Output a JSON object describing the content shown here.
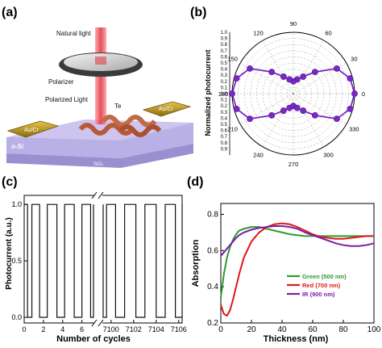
{
  "panels": {
    "a": {
      "tag": "(a)",
      "labels": {
        "natural_light": "Natural light",
        "polarizer": "Polarizer",
        "polarized_light": "Polarized Light",
        "te": "Te",
        "electrode_left": "Au/Cr",
        "electrode_right": "Au/Cr",
        "substrate": "n-Si",
        "oxide": "SiO₂"
      },
      "colors": {
        "laser": "#e0303a",
        "gold": "#c9a227",
        "substrate": "#9b8fd0",
        "oxide": "#b9b0e6"
      }
    },
    "b": {
      "tag": "(b)"
    },
    "c": {
      "tag": "(c)"
    },
    "d": {
      "tag": "(d)"
    }
  },
  "chart_data": [
    {
      "panel": "b",
      "type": "scatter",
      "polar": true,
      "ylabel": "Normalized photocurrent",
      "radial_range": [
        0,
        1.0
      ],
      "radial_ticks_right": [
        "0.0",
        "0.1",
        "0.2",
        "0.3",
        "0.4",
        "0.5",
        "0.6",
        "0.7",
        "0.8",
        "0.9",
        "1.0"
      ],
      "radial_ticks_left": [
        "1.0",
        "0.9",
        "0.8",
        "0.7",
        "0.6",
        "0.5",
        "0.4",
        "0.3",
        "0.2",
        "0.1"
      ],
      "angle_ticks": [
        0,
        30,
        60,
        90,
        120,
        150,
        180,
        210,
        240,
        270,
        300,
        330
      ],
      "angles": [
        0,
        15,
        30,
        45,
        60,
        75,
        90,
        105,
        120,
        135,
        150,
        165,
        180,
        195,
        210,
        225,
        240,
        255,
        270,
        285,
        300,
        315,
        330,
        345
      ],
      "values": [
        1.0,
        0.96,
        0.82,
        0.5,
        0.32,
        0.24,
        0.2,
        0.24,
        0.32,
        0.5,
        0.82,
        0.96,
        1.0,
        0.96,
        0.82,
        0.5,
        0.32,
        0.24,
        0.2,
        0.24,
        0.32,
        0.5,
        0.82,
        0.96
      ],
      "color": "#7a28c8",
      "grid": true
    },
    {
      "panel": "c",
      "type": "line",
      "xlabel": "Number of cycles",
      "ylabel": "Photocurrent (a.u.)",
      "ylim": [
        -0.05,
        1.08
      ],
      "yticks": [
        "0.0",
        "0.5",
        "1.0"
      ],
      "xticks_left": [
        "0",
        "2",
        "4",
        "6"
      ],
      "xticks_right": [
        "7100",
        "7102",
        "7104",
        "7106"
      ],
      "left_range": [
        0,
        7.2
      ],
      "right_range": [
        7099.3,
        7106.3
      ],
      "high": 1.0,
      "low": 0.0,
      "cycles_left": [
        [
          0.35,
          0.8
        ],
        [
          1.6,
          2.4
        ],
        [
          3.4,
          4.2
        ],
        [
          5.2,
          6.0
        ],
        [
          6.9,
          7.2
        ]
      ],
      "cycles_right": [
        [
          7099.3,
          7099.6
        ],
        [
          7100.4,
          7101.2
        ],
        [
          7102.2,
          7103.0
        ],
        [
          7104.0,
          7104.8
        ],
        [
          7105.7,
          7106.3
        ]
      ],
      "color": "#111111"
    },
    {
      "panel": "d",
      "type": "line",
      "xlabel": "Thickness (nm)",
      "ylabel": "Absorption",
      "xlim": [
        0,
        100
      ],
      "ylim": [
        0.2,
        0.86
      ],
      "xticks": [
        "0",
        "20",
        "40",
        "60",
        "80",
        "100"
      ],
      "yticks": [
        "0.2",
        "0.4",
        "0.6",
        "0.8"
      ],
      "x": [
        0,
        2,
        4,
        6,
        8,
        10,
        12,
        15,
        20,
        25,
        30,
        35,
        40,
        45,
        50,
        55,
        60,
        65,
        70,
        75,
        80,
        85,
        90,
        95,
        100
      ],
      "series": [
        {
          "name": "Green (500 nm)",
          "color": "#2e9a2e",
          "values": [
            0.34,
            0.47,
            0.56,
            0.62,
            0.66,
            0.69,
            0.71,
            0.72,
            0.73,
            0.73,
            0.72,
            0.71,
            0.7,
            0.69,
            0.685,
            0.68,
            0.68,
            0.68,
            0.68,
            0.68,
            0.68,
            0.68,
            0.68,
            0.68,
            0.68
          ]
        },
        {
          "name": "Red (700 nm)",
          "color": "#e01818",
          "values": [
            0.3,
            0.25,
            0.24,
            0.27,
            0.33,
            0.4,
            0.47,
            0.56,
            0.65,
            0.7,
            0.73,
            0.745,
            0.75,
            0.745,
            0.73,
            0.71,
            0.69,
            0.675,
            0.67,
            0.665,
            0.665,
            0.67,
            0.675,
            0.68,
            0.68
          ]
        },
        {
          "name": "IR (900 nm)",
          "color": "#7a1ea8",
          "values": [
            0.57,
            0.59,
            0.61,
            0.63,
            0.65,
            0.67,
            0.685,
            0.7,
            0.715,
            0.725,
            0.73,
            0.735,
            0.735,
            0.73,
            0.72,
            0.7,
            0.685,
            0.67,
            0.655,
            0.64,
            0.63,
            0.625,
            0.625,
            0.63,
            0.64
          ]
        }
      ],
      "legend_position": "bottom-right"
    }
  ]
}
